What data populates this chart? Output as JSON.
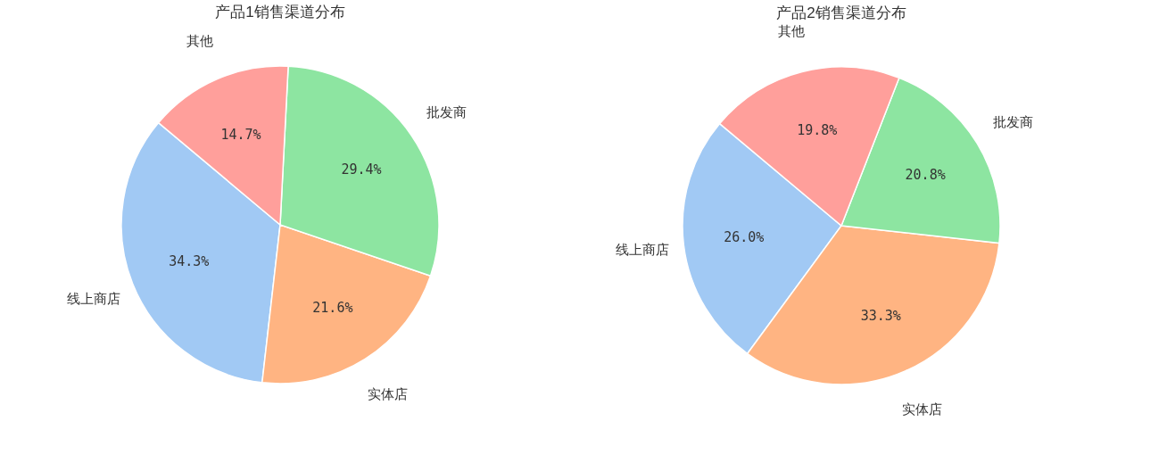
{
  "chart_data": [
    {
      "type": "pie",
      "title": "产品1销售渠道分布",
      "categories": [
        "线上商店",
        "实体店",
        "批发商",
        "其他"
      ],
      "values": [
        34.3,
        21.6,
        29.4,
        14.7
      ],
      "colors": [
        "#a1c9f4",
        "#ffb482",
        "#8de5a1",
        "#ff9f9b"
      ],
      "value_labels": [
        "34.3%",
        "21.6%",
        "29.4%",
        "14.7%"
      ]
    },
    {
      "type": "pie",
      "title": "产品2销售渠道分布",
      "categories": [
        "线上商店",
        "实体店",
        "批发商",
        "其他"
      ],
      "values": [
        26.0,
        33.3,
        20.8,
        19.8
      ],
      "colors": [
        "#a1c9f4",
        "#ffb482",
        "#8de5a1",
        "#ff9f9b"
      ],
      "value_labels": [
        "26.0%",
        "33.3%",
        "20.8%",
        "19.8%"
      ]
    }
  ]
}
